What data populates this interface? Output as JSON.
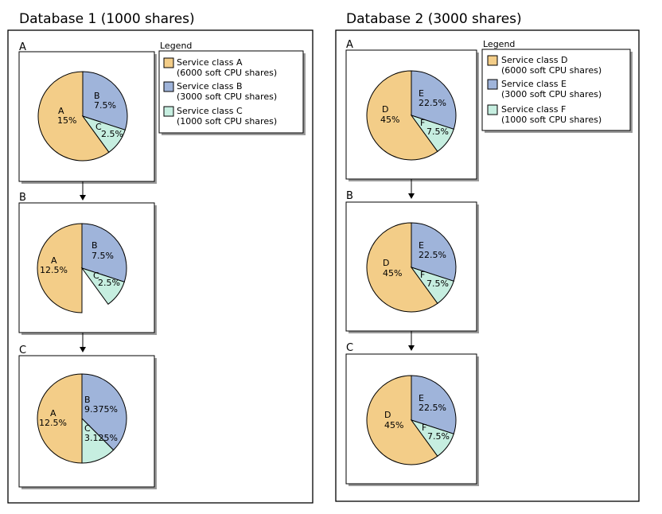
{
  "colors": {
    "service_a": "#F3CD88",
    "service_b": "#9FB4DA",
    "service_c": "#C6EEE0",
    "stroke": "#000000",
    "shadow": "#9a9a9a"
  },
  "databases": [
    {
      "title": "Database 1 (1000 shares)",
      "legend": {
        "title": "Legend",
        "entries": [
          {
            "color_key": "service_a",
            "line1": "Service class A",
            "line2": "(6000 soft CPU shares)"
          },
          {
            "color_key": "service_b",
            "line1": "Service class B",
            "line2": "(3000 soft CPU shares)"
          },
          {
            "color_key": "service_c",
            "line1": "Service class C",
            "line2": "(1000 soft CPU shares)"
          }
        ]
      },
      "steps": [
        {
          "label": "A",
          "slices": [
            {
              "color_key": "service_a",
              "letter": "A",
              "pct": "15%",
              "fraction": 0.6
            },
            {
              "color_key": "service_b",
              "letter": "B",
              "pct": "7.5%",
              "fraction": 0.3
            },
            {
              "color_key": "service_c",
              "letter": "C",
              "pct": "2.5%",
              "fraction": 0.1
            }
          ]
        },
        {
          "label": "B",
          "slices": [
            {
              "color_key": "service_a",
              "letter": "A",
              "pct": "12.5%",
              "fraction": 0.5
            },
            {
              "color_key": "service_b",
              "letter": "B",
              "pct": "7.5%",
              "fraction": 0.3
            },
            {
              "color_key": "service_c",
              "letter": "C",
              "pct": "2.5%",
              "fraction": 0.1
            }
          ]
        },
        {
          "label": "C",
          "slices": [
            {
              "color_key": "service_a",
              "letter": "A",
              "pct": "12.5%",
              "fraction": 0.5
            },
            {
              "color_key": "service_b",
              "letter": "B",
              "pct": "9.375%",
              "fraction": 0.375
            },
            {
              "color_key": "service_c",
              "letter": "C",
              "pct": "3.125%",
              "fraction": 0.125
            }
          ]
        }
      ]
    },
    {
      "title": "Database 2 (3000 shares)",
      "legend": {
        "title": "Legend",
        "entries": [
          {
            "color_key": "service_a",
            "line1": "Service class D",
            "line2": "(6000 soft CPU shares)"
          },
          {
            "color_key": "service_b",
            "line1": "Service class E",
            "line2": "(3000 soft CPU shares)"
          },
          {
            "color_key": "service_c",
            "line1": "Service class F",
            "line2": "(1000 soft CPU shares)"
          }
        ]
      },
      "steps": [
        {
          "label": "A",
          "slices": [
            {
              "color_key": "service_a",
              "letter": "D",
              "pct": "45%",
              "fraction": 0.6
            },
            {
              "color_key": "service_b",
              "letter": "E",
              "pct": "22.5%",
              "fraction": 0.3
            },
            {
              "color_key": "service_c",
              "letter": "F",
              "pct": "7.5%",
              "fraction": 0.1
            }
          ]
        },
        {
          "label": "B",
          "slices": [
            {
              "color_key": "service_a",
              "letter": "D",
              "pct": "45%",
              "fraction": 0.6
            },
            {
              "color_key": "service_b",
              "letter": "E",
              "pct": "22.5%",
              "fraction": 0.3
            },
            {
              "color_key": "service_c",
              "letter": "F",
              "pct": "7.5%",
              "fraction": 0.1
            }
          ]
        },
        {
          "label": "C",
          "slices": [
            {
              "color_key": "service_a",
              "letter": "D",
              "pct": "45%",
              "fraction": 0.6
            },
            {
              "color_key": "service_b",
              "letter": "E",
              "pct": "22.5%",
              "fraction": 0.3
            },
            {
              "color_key": "service_c",
              "letter": "F",
              "pct": "7.5%",
              "fraction": 0.1
            }
          ]
        }
      ]
    }
  ]
}
